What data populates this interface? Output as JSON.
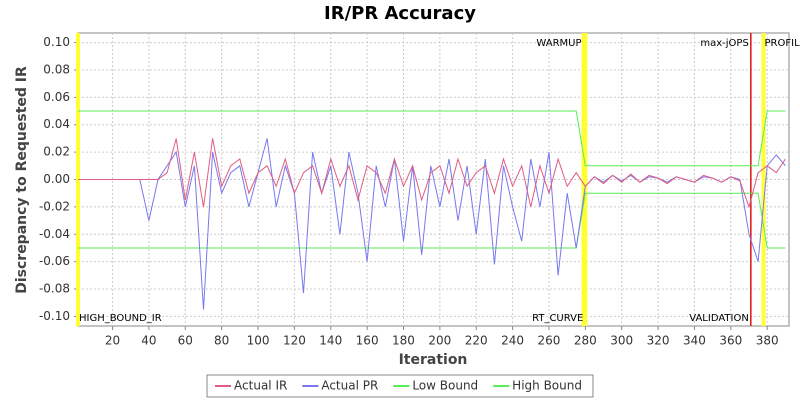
{
  "chart_data": {
    "type": "line",
    "title": "IR/PR Accuracy",
    "xlabel": "Iteration",
    "ylabel": "Discrepancy to Requested IR",
    "x": [
      1,
      35,
      40,
      45,
      50,
      55,
      60,
      65,
      70,
      75,
      80,
      85,
      90,
      95,
      100,
      105,
      110,
      115,
      120,
      125,
      130,
      135,
      140,
      145,
      150,
      155,
      160,
      165,
      170,
      175,
      180,
      185,
      190,
      195,
      200,
      205,
      210,
      215,
      220,
      225,
      230,
      235,
      240,
      245,
      250,
      255,
      260,
      265,
      270,
      275,
      280,
      285,
      290,
      295,
      300,
      305,
      310,
      315,
      320,
      325,
      330,
      335,
      340,
      345,
      350,
      355,
      360,
      365,
      370,
      375,
      380,
      385,
      390
    ],
    "series": [
      {
        "name": "Actual IR",
        "color": "#e05c82",
        "values": [
          0,
          0,
          0,
          0,
          0.005,
          0.03,
          -0.015,
          0.02,
          -0.02,
          0.03,
          -0.005,
          0.01,
          0.015,
          -0.01,
          0.005,
          0.01,
          -0.005,
          0.015,
          -0.01,
          0.005,
          0.01,
          -0.01,
          0.015,
          -0.005,
          0.01,
          -0.015,
          0.01,
          0.005,
          -0.01,
          0.015,
          -0.005,
          0.01,
          -0.015,
          0.005,
          0.01,
          -0.01,
          0.015,
          -0.005,
          0.005,
          0.01,
          -0.01,
          0.015,
          -0.005,
          0.01,
          -0.02,
          0.01,
          -0.01,
          0.015,
          -0.005,
          0.005,
          -0.005,
          0.002,
          -0.003,
          0.003,
          -0.002,
          0.004,
          -0.002,
          0.003,
          0.001,
          -0.003,
          0.002,
          0,
          -0.002,
          0.003,
          0.001,
          -0.002,
          0.002,
          -0.001,
          -0.02,
          0.005,
          0.01,
          0.005,
          0.015
        ]
      },
      {
        "name": "Actual PR",
        "color": "#7878f0",
        "values": [
          0,
          0,
          -0.03,
          0,
          0.01,
          0.02,
          -0.02,
          0.01,
          -0.095,
          0.02,
          -0.01,
          0.005,
          0.01,
          -0.02,
          0.005,
          0.03,
          -0.02,
          0.01,
          -0.01,
          -0.083,
          0.02,
          -0.01,
          0.01,
          -0.04,
          0.02,
          -0.01,
          -0.06,
          0.01,
          -0.02,
          0.015,
          -0.045,
          0.01,
          -0.055,
          0.01,
          -0.02,
          0.015,
          -0.03,
          0.01,
          -0.04,
          0.015,
          -0.062,
          0.01,
          -0.02,
          -0.045,
          0.015,
          -0.02,
          0.02,
          -0.07,
          -0.01,
          -0.05,
          -0.005,
          0.002,
          -0.002,
          0.003,
          -0.001,
          0.003,
          -0.002,
          0.002,
          0.001,
          -0.002,
          0.002,
          0,
          -0.002,
          0.002,
          0.001,
          -0.002,
          0.002,
          0,
          -0.04,
          -0.06,
          0.01,
          0.018,
          0.01
        ]
      },
      {
        "name": "Low Bound",
        "color": "#55ee55",
        "values": [
          -0.05,
          -0.05,
          -0.05,
          -0.05,
          -0.05,
          -0.05,
          -0.05,
          -0.05,
          -0.05,
          -0.05,
          -0.05,
          -0.05,
          -0.05,
          -0.05,
          -0.05,
          -0.05,
          -0.05,
          -0.05,
          -0.05,
          -0.05,
          -0.05,
          -0.05,
          -0.05,
          -0.05,
          -0.05,
          -0.05,
          -0.05,
          -0.05,
          -0.05,
          -0.05,
          -0.05,
          -0.05,
          -0.05,
          -0.05,
          -0.05,
          -0.05,
          -0.05,
          -0.05,
          -0.05,
          -0.05,
          -0.05,
          -0.05,
          -0.05,
          -0.05,
          -0.05,
          -0.05,
          -0.05,
          -0.05,
          -0.05,
          -0.05,
          -0.01,
          -0.01,
          -0.01,
          -0.01,
          -0.01,
          -0.01,
          -0.01,
          -0.01,
          -0.01,
          -0.01,
          -0.01,
          -0.01,
          -0.01,
          -0.01,
          -0.01,
          -0.01,
          -0.01,
          -0.01,
          -0.01,
          -0.01,
          -0.05,
          -0.05,
          -0.05
        ]
      },
      {
        "name": "High Bound",
        "color": "#55ee55",
        "values": [
          0.05,
          0.05,
          0.05,
          0.05,
          0.05,
          0.05,
          0.05,
          0.05,
          0.05,
          0.05,
          0.05,
          0.05,
          0.05,
          0.05,
          0.05,
          0.05,
          0.05,
          0.05,
          0.05,
          0.05,
          0.05,
          0.05,
          0.05,
          0.05,
          0.05,
          0.05,
          0.05,
          0.05,
          0.05,
          0.05,
          0.05,
          0.05,
          0.05,
          0.05,
          0.05,
          0.05,
          0.05,
          0.05,
          0.05,
          0.05,
          0.05,
          0.05,
          0.05,
          0.05,
          0.05,
          0.05,
          0.05,
          0.05,
          0.05,
          0.05,
          0.01,
          0.01,
          0.01,
          0.01,
          0.01,
          0.01,
          0.01,
          0.01,
          0.01,
          0.01,
          0.01,
          0.01,
          0.01,
          0.01,
          0.01,
          0.01,
          0.01,
          0.01,
          0.01,
          0.01,
          0.05,
          0.05,
          0.05
        ]
      }
    ],
    "markers": [
      {
        "label": "HIGH_BOUND_IR",
        "x": 1,
        "color": "#ffff33",
        "position": "bottom",
        "align": "left"
      },
      {
        "label": "WARMUP",
        "x": 279,
        "color": "#ffff33",
        "position": "top",
        "align": "right"
      },
      {
        "label": "RT_CURVE",
        "x": 280,
        "color": "#ffff33",
        "position": "bottom",
        "align": "right"
      },
      {
        "label": "max-jOPS",
        "x": 371,
        "color": "#dd2222",
        "position": "top",
        "align": "right"
      },
      {
        "label": "VALIDATION",
        "x": 371,
        "color": "#dd2222",
        "position": "bottom",
        "align": "right"
      },
      {
        "label": "PROFILE",
        "x": 378,
        "color": "#ffff33",
        "position": "top",
        "align": "left"
      }
    ],
    "xlim": [
      1,
      392
    ],
    "ylim": [
      -0.107,
      0.107
    ],
    "xticks": [
      20,
      40,
      60,
      80,
      100,
      120,
      140,
      160,
      180,
      200,
      220,
      240,
      260,
      280,
      300,
      320,
      340,
      360,
      380
    ],
    "yticks": [
      {
        "value": -0.1,
        "label": "-0.10"
      },
      {
        "value": -0.08,
        "label": "-0.08"
      },
      {
        "value": -0.06,
        "label": "-0.06"
      },
      {
        "value": -0.04,
        "label": "-0.04"
      },
      {
        "value": -0.02,
        "label": "-0.02"
      },
      {
        "value": 0,
        "label": "0.00"
      },
      {
        "value": 0.02,
        "label": "0.02"
      },
      {
        "value": 0.04,
        "label": "0.04"
      },
      {
        "value": 0.06,
        "label": "0.06"
      },
      {
        "value": 0.08,
        "label": "0.08"
      },
      {
        "value": 0.1,
        "label": "0.10"
      }
    ],
    "grid": true,
    "legend": "bottom"
  }
}
